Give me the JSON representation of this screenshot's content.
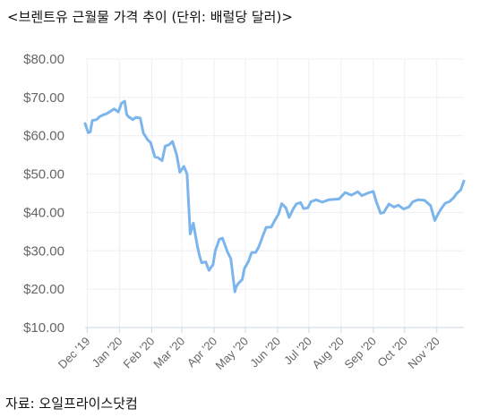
{
  "title": "<브렌트유 근월물 가격 추이 (단위: 배럴당 달러)>",
  "source": "자료: 오일프라이스닷컴",
  "colors": {
    "line": "#7cb5ec",
    "grid": "#eceff3",
    "axis": "#ccd6eb",
    "tick_text": "#666666"
  },
  "chart_data": {
    "type": "line",
    "title": "<브렌트유 근월물 가격 추이 (단위: 배럴당 달러)>",
    "xlabel": "",
    "ylabel": "",
    "grid": true,
    "legend": "none",
    "ylim": [
      10,
      80
    ],
    "y_ticks": [
      {
        "value": 80,
        "label": "$80.00"
      },
      {
        "value": 70,
        "label": "$70.00"
      },
      {
        "value": 60,
        "label": "$60.00"
      },
      {
        "value": 50,
        "label": "$50.00"
      },
      {
        "value": 40,
        "label": "$40.00"
      },
      {
        "value": 30,
        "label": "$30.00"
      },
      {
        "value": 20,
        "label": "$20.00"
      },
      {
        "value": 10,
        "label": "$10.00"
      }
    ],
    "x_ticks": [
      {
        "date": "2019-12-01",
        "label": "Dec '19"
      },
      {
        "date": "2020-01-01",
        "label": "Jan '20"
      },
      {
        "date": "2020-02-01",
        "label": "Feb '20"
      },
      {
        "date": "2020-03-01",
        "label": "Mar '20"
      },
      {
        "date": "2020-04-01",
        "label": "Apr '20"
      },
      {
        "date": "2020-05-01",
        "label": "May '20"
      },
      {
        "date": "2020-06-01",
        "label": "Jun '20"
      },
      {
        "date": "2020-07-01",
        "label": "Jul '20"
      },
      {
        "date": "2020-08-01",
        "label": "Aug '20"
      },
      {
        "date": "2020-09-01",
        "label": "Sep '20"
      },
      {
        "date": "2020-10-01",
        "label": "Oct '20"
      },
      {
        "date": "2020-11-01",
        "label": "Nov '20"
      }
    ],
    "series": [
      {
        "x": [
          "2019-11-29",
          "2019-12-02",
          "2019-12-04",
          "2019-12-06",
          "2019-12-10",
          "2019-12-13",
          "2019-12-17",
          "2019-12-20",
          "2019-12-24",
          "2019-12-27",
          "2019-12-31",
          "2020-01-03",
          "2020-01-06",
          "2020-01-08",
          "2020-01-10",
          "2020-01-14",
          "2020-01-17",
          "2020-01-21",
          "2020-01-24",
          "2020-01-28",
          "2020-01-31",
          "2020-02-04",
          "2020-02-07",
          "2020-02-11",
          "2020-02-14",
          "2020-02-18",
          "2020-02-21",
          "2020-02-25",
          "2020-02-28",
          "2020-03-03",
          "2020-03-06",
          "2020-03-09",
          "2020-03-12",
          "2020-03-16",
          "2020-03-18",
          "2020-03-20",
          "2020-03-24",
          "2020-03-27",
          "2020-03-31",
          "2020-04-02",
          "2020-04-06",
          "2020-04-09",
          "2020-04-14",
          "2020-04-17",
          "2020-04-21",
          "2020-04-22",
          "2020-04-24",
          "2020-04-28",
          "2020-04-30",
          "2020-05-04",
          "2020-05-07",
          "2020-05-11",
          "2020-05-14",
          "2020-05-18",
          "2020-05-21",
          "2020-05-26",
          "2020-05-29",
          "2020-06-02",
          "2020-06-05",
          "2020-06-09",
          "2020-06-12",
          "2020-06-16",
          "2020-06-19",
          "2020-06-23",
          "2020-06-26",
          "2020-06-30",
          "2020-07-03",
          "2020-07-08",
          "2020-07-14",
          "2020-07-20",
          "2020-07-24",
          "2020-07-30",
          "2020-08-05",
          "2020-08-11",
          "2020-08-17",
          "2020-08-21",
          "2020-08-27",
          "2020-09-01",
          "2020-09-04",
          "2020-09-08",
          "2020-09-11",
          "2020-09-16",
          "2020-09-21",
          "2020-09-25",
          "2020-09-30",
          "2020-10-05",
          "2020-10-09",
          "2020-10-14",
          "2020-10-20",
          "2020-10-26",
          "2020-10-30",
          "2020-11-02",
          "2020-11-05",
          "2020-11-09",
          "2020-11-13",
          "2020-11-17",
          "2020-11-20",
          "2020-11-24",
          "2020-11-27"
        ],
        "y": [
          63.2,
          60.8,
          61.0,
          64.0,
          64.2,
          65.0,
          65.5,
          65.8,
          66.5,
          67.0,
          66.2,
          68.5,
          69.0,
          65.5,
          64.9,
          64.2,
          64.8,
          64.6,
          60.7,
          59.0,
          58.2,
          54.5,
          54.3,
          53.5,
          57.3,
          57.7,
          58.5,
          55.0,
          50.5,
          52.0,
          50.0,
          34.4,
          37.2,
          31.1,
          28.7,
          26.9,
          27.1,
          24.9,
          26.4,
          29.9,
          33.0,
          33.3,
          29.6,
          28.0,
          19.3,
          20.5,
          21.4,
          22.5,
          25.3,
          27.2,
          29.5,
          29.6,
          31.1,
          34.0,
          36.1,
          36.2,
          37.8,
          39.6,
          42.3,
          41.2,
          38.7,
          40.9,
          42.2,
          42.6,
          41.0,
          41.2,
          42.8,
          43.3,
          42.7,
          43.3,
          43.4,
          43.5,
          45.2,
          44.5,
          45.4,
          44.4,
          45.1,
          45.5,
          42.7,
          39.8,
          40.0,
          42.2,
          41.4,
          41.9,
          40.9,
          41.4,
          42.8,
          43.3,
          43.2,
          41.8,
          37.9,
          39.5,
          40.9,
          42.4,
          42.8,
          43.8,
          44.9,
          45.9,
          48.2
        ],
        "color": "#7cb5ec"
      }
    ]
  }
}
